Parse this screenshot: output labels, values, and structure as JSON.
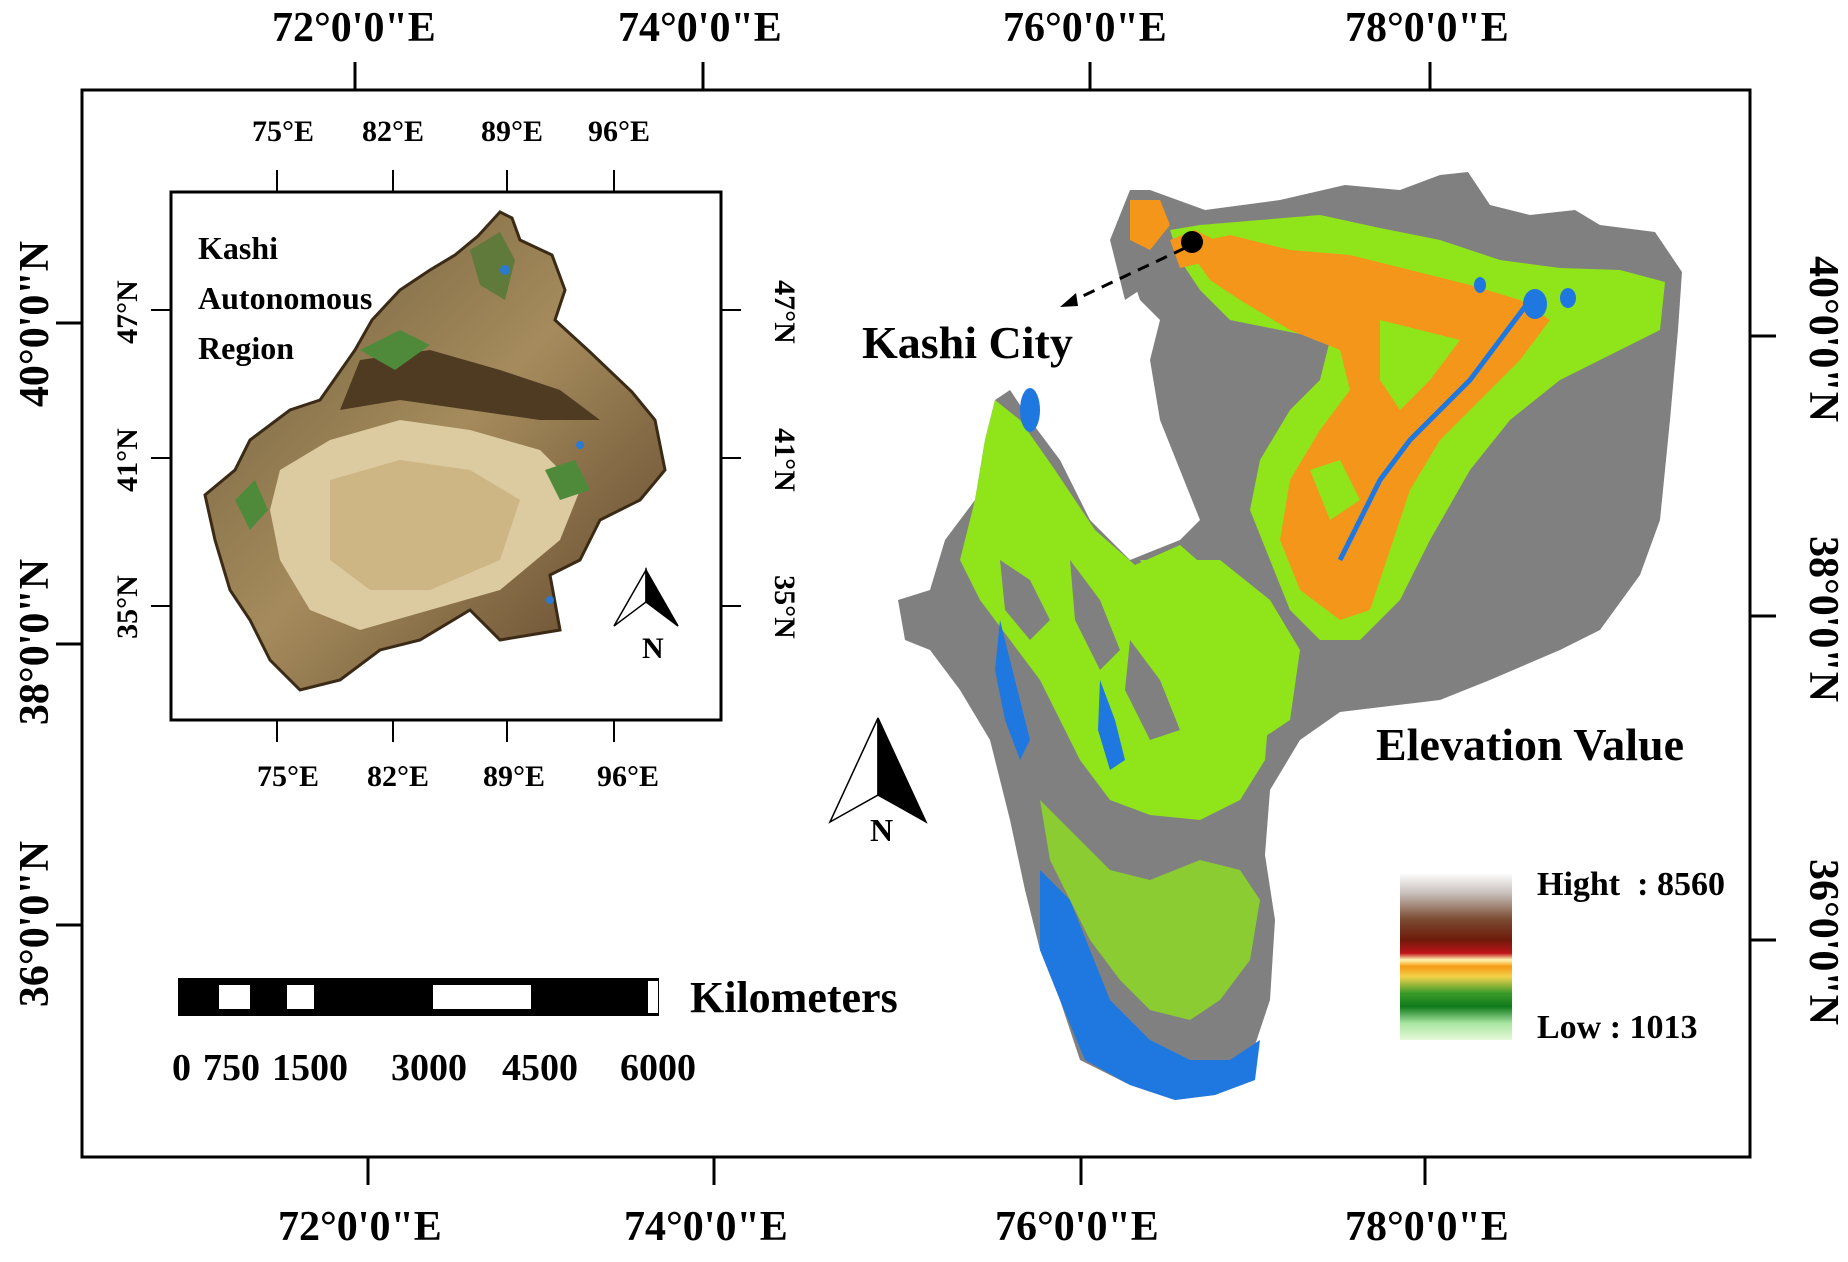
{
  "map": {
    "outer_top_lon": [
      "72°0'0\"E",
      "74°0'0\"E",
      "76°0'0\"E",
      "78°0'0\"E"
    ],
    "outer_bottom_lon": [
      "72°0'0\"E",
      "74°0'0\"E",
      "76°0'0\"E",
      "78°0'0\"E"
    ],
    "outer_left_lat": [
      "40°0'0\"N",
      "38°0'0\"N",
      "36°0'0\"N"
    ],
    "outer_right_lat": [
      "40°0'0\"N",
      "38°0'0\"N",
      "36°0'0\"N"
    ]
  },
  "inset": {
    "title_lines": [
      "Kashi",
      "Autonomous",
      "Region"
    ],
    "top_lon": [
      "75°E",
      "82°E",
      "89°E",
      "96°E"
    ],
    "bottom_lon": [
      "75°E",
      "82°E",
      "89°E",
      "96°E"
    ],
    "left_lat": [
      "47°N",
      "41°N",
      "35°N"
    ],
    "right_lat": [
      "47°N",
      "41°N",
      "35°N"
    ],
    "north_label": "N"
  },
  "main": {
    "city_label": "Kashi City",
    "north_label": "N"
  },
  "scalebar": {
    "unit": "Kilometers",
    "ticks": [
      "0",
      "750",
      "1500",
      "3000",
      "4500",
      "6000"
    ]
  },
  "legend": {
    "title": "Elevation Value",
    "high_label": "Hight  : 8560",
    "low_label": "Low : 1013"
  },
  "colors": {
    "frame": "#000000",
    "region_gray": "#808080",
    "region_green": "#8fe51a",
    "region_orange": "#f4961a",
    "region_blue": "#1f78e0",
    "inset_desert": "#d9c9a0",
    "inset_mountain": "#5d4327"
  }
}
